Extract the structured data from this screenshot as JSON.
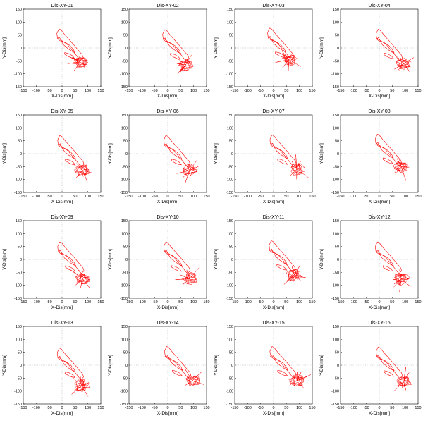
{
  "chart_data": [
    {
      "type": "line",
      "title": "Dis-XY-01",
      "xlabel": "X-Dis[mm]",
      "ylabel": "Y-Dis[mm]",
      "xlim": [
        -150,
        150
      ],
      "ylim": [
        -150,
        150
      ],
      "ticks": [
        -150,
        -100,
        -50,
        0,
        50,
        100,
        150
      ],
      "grid": "dotted at zero",
      "trace": {
        "center": [
          70,
          -55
        ]
      }
    },
    {
      "type": "line",
      "title": "Dis-XY-02",
      "xlabel": "X-Dis[mm]",
      "ylabel": "Y-Dis[mm]",
      "xlim": [
        -150,
        150
      ],
      "ylim": [
        -150,
        150
      ],
      "ticks": [
        -150,
        -100,
        -50,
        0,
        50,
        100,
        150
      ],
      "grid": "dotted at zero",
      "trace": {
        "center": [
          70,
          -65
        ]
      }
    },
    {
      "type": "line",
      "title": "Dis-XY-03",
      "xlabel": "X-Dis[mm]",
      "ylabel": "Y-Dis[mm]",
      "xlim": [
        -150,
        150
      ],
      "ylim": [
        -150,
        150
      ],
      "ticks": [
        -150,
        -100,
        -50,
        0,
        50,
        100,
        150
      ],
      "grid": "dotted at zero",
      "trace": {
        "center": [
          60,
          -45
        ]
      }
    },
    {
      "type": "line",
      "title": "Dis-XY-04",
      "xlabel": "X-Dis[mm]",
      "ylabel": "Y-Dis[mm]",
      "xlim": [
        -150,
        150
      ],
      "ylim": [
        -150,
        150
      ],
      "ticks": [
        -150,
        -100,
        -50,
        0,
        50,
        100,
        150
      ],
      "grid": "dotted at zero",
      "trace": {
        "center": [
          95,
          -60
        ]
      }
    },
    {
      "type": "line",
      "title": "Dis-XY-05",
      "xlabel": "X-Dis[mm]",
      "ylabel": "Y-Dis[mm]",
      "xlim": [
        -150,
        150
      ],
      "ylim": [
        -150,
        150
      ],
      "ticks": [
        -150,
        -100,
        -50,
        0,
        50,
        100,
        150
      ],
      "grid": "dotted at zero",
      "trace": {
        "center": [
          80,
          -65
        ]
      }
    },
    {
      "type": "line",
      "title": "Dis-XY-06",
      "xlabel": "X-Dis[mm]",
      "ylabel": "Y-Dis[mm]",
      "xlim": [
        -150,
        150
      ],
      "ylim": [
        -150,
        150
      ],
      "ticks": [
        -150,
        -100,
        -50,
        0,
        50,
        100,
        150
      ],
      "grid": "dotted at zero",
      "trace": {
        "center": [
          85,
          -65
        ]
      }
    },
    {
      "type": "line",
      "title": "Dis-XY-07",
      "xlabel": "X-Dis[mm]",
      "ylabel": "Y-Dis[mm]",
      "xlim": [
        -150,
        150
      ],
      "ylim": [
        -150,
        150
      ],
      "ticks": [
        -150,
        -100,
        -50,
        0,
        50,
        100,
        150
      ],
      "grid": "dotted at zero",
      "trace": {
        "center": [
          90,
          -60
        ]
      }
    },
    {
      "type": "line",
      "title": "Dis-XY-08",
      "xlabel": "X-Dis[mm]",
      "ylabel": "Y-Dis[mm]",
      "xlim": [
        -150,
        150
      ],
      "ylim": [
        -150,
        150
      ],
      "ticks": [
        -150,
        -100,
        -50,
        0,
        50,
        100,
        150
      ],
      "grid": "dotted at zero",
      "trace": {
        "center": [
          85,
          -50
        ]
      }
    },
    {
      "type": "line",
      "title": "Dis-XY-09",
      "xlabel": "X-Dis[mm]",
      "ylabel": "Y-Dis[mm]",
      "xlim": [
        -150,
        150
      ],
      "ylim": [
        -150,
        150
      ],
      "ticks": [
        -150,
        -100,
        -50,
        0,
        50,
        100,
        150
      ],
      "grid": "dotted at zero",
      "trace": {
        "center": [
          80,
          -75
        ]
      }
    },
    {
      "type": "line",
      "title": "Dis-XY-10",
      "xlabel": "X-Dis[mm]",
      "ylabel": "Y-Dis[mm]",
      "xlim": [
        -150,
        150
      ],
      "ylim": [
        -150,
        150
      ],
      "ticks": [
        -150,
        -100,
        -50,
        0,
        50,
        100,
        150
      ],
      "grid": "dotted at zero",
      "trace": {
        "center": [
          85,
          -75
        ]
      }
    },
    {
      "type": "line",
      "title": "Dis-XY-11",
      "xlabel": "X-Dis[mm]",
      "ylabel": "Y-Dis[mm]",
      "xlim": [
        -150,
        150
      ],
      "ylim": [
        -150,
        150
      ],
      "ticks": [
        -150,
        -100,
        -50,
        0,
        50,
        100,
        150
      ],
      "grid": "dotted at zero",
      "trace": {
        "center": [
          80,
          -60
        ]
      }
    },
    {
      "type": "line",
      "title": "Dis-XY-12",
      "xlabel": "X-Dis[mm]",
      "ylabel": "Y-Dis[mm]",
      "xlim": [
        -150,
        150
      ],
      "ylim": [
        -150,
        150
      ],
      "ticks": [
        -150,
        -100,
        -50,
        0,
        50,
        100,
        150
      ],
      "grid": "dotted at zero",
      "trace": {
        "center": [
          85,
          -75
        ]
      }
    },
    {
      "type": "line",
      "title": "Dis-XY-13",
      "xlabel": "X-Dis[mm]",
      "ylabel": "Y-Dis[mm]",
      "xlim": [
        -150,
        150
      ],
      "ylim": [
        -150,
        150
      ],
      "ticks": [
        -150,
        -100,
        -50,
        0,
        50,
        100,
        150
      ],
      "grid": "dotted at zero",
      "trace": {
        "center": [
          75,
          -80
        ]
      }
    },
    {
      "type": "line",
      "title": "Dis-XY-14",
      "xlabel": "X-Dis[mm]",
      "ylabel": "Y-Dis[mm]",
      "xlim": [
        -150,
        150
      ],
      "ylim": [
        -150,
        150
      ],
      "ticks": [
        -150,
        -100,
        -50,
        0,
        50,
        100,
        150
      ],
      "grid": "dotted at zero",
      "trace": {
        "center": [
          95,
          -60
        ]
      }
    },
    {
      "type": "line",
      "title": "Dis-XY-15",
      "xlabel": "X-Dis[mm]",
      "ylabel": "Y-Dis[mm]",
      "xlim": [
        -150,
        150
      ],
      "ylim": [
        -150,
        150
      ],
      "ticks": [
        -150,
        -100,
        -50,
        0,
        50,
        100,
        150
      ],
      "grid": "dotted at zero",
      "trace": {
        "center": [
          90,
          -60
        ]
      }
    },
    {
      "type": "line",
      "title": "Dis-XY-16",
      "xlabel": "X-Dis[mm]",
      "ylabel": "Y-Dis[mm]",
      "xlim": [
        -150,
        150
      ],
      "ylim": [
        -150,
        150
      ],
      "ticks": [
        -150,
        -100,
        -50,
        0,
        50,
        100,
        150
      ],
      "grid": "dotted at zero",
      "trace": {
        "center": [
          95,
          -65
        ]
      }
    }
  ],
  "colors": {
    "trace": "#ff0000",
    "axis": "#000000",
    "grid": "#aaaaaa"
  }
}
